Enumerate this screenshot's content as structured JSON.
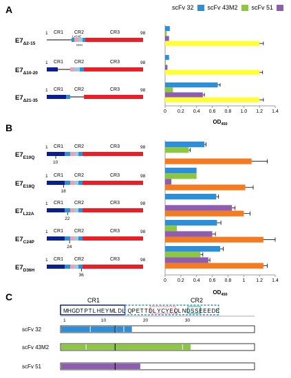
{
  "panels": {
    "a": "A",
    "b": "B",
    "c": "C"
  },
  "colors": {
    "scfv32": "#2e8fd8",
    "scfv43m2": "#8dc63f",
    "scfv51": "#8e5db0",
    "neg": "#ffff33",
    "pos": "#f47b20",
    "cr3": "#ee1c25",
    "cr1": "#0a1f8f",
    "cr2a": "#2e8fd8",
    "cr2b": "#e7a3b4",
    "cr2c": "#9ecae1"
  },
  "legend": [
    {
      "name": "scFv 32",
      "color": "#2e8fd8"
    },
    {
      "name": "scFv 43M2",
      "color": "#8dc63f"
    },
    {
      "name": "scFv 51",
      "color": "#8e5db0"
    }
  ],
  "constructs_a": [
    {
      "label_main": "E7",
      "label_sub": "Δ2-15",
      "cr1": "CR1",
      "cr2": "CR2",
      "cr3": "CR3",
      "start": "1",
      "end": "98",
      "extra1": "LxCxE",
      "extra2": "CKII"
    },
    {
      "label_main": "E7",
      "label_sub": "Δ10-20",
      "cr1": "CR1",
      "cr2": "CR2",
      "cr3": "CR3",
      "start": "1",
      "end": "98"
    },
    {
      "label_main": "E7",
      "label_sub": "Δ21-35",
      "cr1": "CR1",
      "cr2": "CR2",
      "cr3": "CR3",
      "start": "1",
      "end": "98"
    }
  ],
  "constructs_b": [
    {
      "label_main": "E7",
      "label_sub": "E10Q",
      "cr1": "CR1",
      "cr2": "CR2",
      "cr3": "CR3",
      "start": "1",
      "end": "98",
      "pos": "10"
    },
    {
      "label_main": "E7",
      "label_sub": "E18Q",
      "cr1": "CR1",
      "cr2": "CR2",
      "cr3": "CR3",
      "start": "1",
      "end": "98",
      "pos": "18"
    },
    {
      "label_main": "E7",
      "label_sub": "L22A",
      "cr1": "CR1",
      "cr2": "CR2",
      "cr3": "CR3",
      "start": "1",
      "end": "98",
      "pos": "22"
    },
    {
      "label_main": "E7",
      "label_sub": "C24P",
      "cr1": "CR1",
      "cr2": "CR2",
      "cr3": "CR3",
      "start": "1",
      "end": "98",
      "pos": "24"
    },
    {
      "label_main": "E7",
      "label_sub": "D36H",
      "cr1": "CR1",
      "cr2": "CR2",
      "cr3": "CR3",
      "start": "1",
      "end": "98",
      "pos": "36"
    }
  ],
  "chart_data": [
    {
      "type": "bar",
      "orientation": "horizontal",
      "xlabel": "OD450",
      "xlim": [
        0,
        1.4
      ],
      "ticks": [
        "0",
        "0.2",
        "0.4",
        "0.6",
        "0.8",
        "1.0",
        "1.2",
        "1.4"
      ],
      "groups": [
        {
          "name": "E7Δ2-15",
          "bars": [
            {
              "series": "scFv 32",
              "value": 0.06
            },
            {
              "series": "scFv 43M2",
              "value": 0.02
            },
            {
              "series": "scFv 51",
              "value": 0.05
            },
            {
              "series": "negative",
              "value": 1.2,
              "err": 0.05
            }
          ]
        },
        {
          "name": "E7Δ10-20",
          "bars": [
            {
              "series": "scFv 32",
              "value": 0.05
            },
            {
              "series": "scFv 43M2",
              "value": 0.01
            },
            {
              "series": "scFv 51",
              "value": 0.03
            },
            {
              "series": "negative",
              "value": 1.2,
              "err": 0.04
            }
          ]
        },
        {
          "name": "E7Δ21-35",
          "bars": [
            {
              "series": "scFv 32",
              "value": 0.67,
              "err": 0.03
            },
            {
              "series": "scFv 43M2",
              "value": 0.1
            },
            {
              "series": "scFv 51",
              "value": 0.48,
              "err": 0.02
            },
            {
              "series": "negative",
              "value": 1.2,
              "err": 0.05
            }
          ]
        }
      ]
    },
    {
      "type": "bar",
      "orientation": "horizontal",
      "xlabel": "OD450",
      "xlim": [
        0,
        1.4
      ],
      "ticks": [
        "0",
        "0.2",
        "0.4",
        "0.6",
        "0.8",
        "1",
        "1.2",
        "1.4"
      ],
      "groups": [
        {
          "name": "E7E10Q",
          "bars": [
            {
              "series": "scFv 32",
              "value": 0.5,
              "err": 0.02
            },
            {
              "series": "scFv 43M2",
              "value": 0.3,
              "err": 0.02
            },
            {
              "series": "scFv 51",
              "value": 0.0
            },
            {
              "series": "positive",
              "value": 1.1,
              "err": 0.2
            }
          ]
        },
        {
          "name": "E7E18Q",
          "bars": [
            {
              "series": "scFv 32",
              "value": 0.4
            },
            {
              "series": "scFv 43M2",
              "value": 0.4
            },
            {
              "series": "scFv 51",
              "value": 0.08
            },
            {
              "series": "positive",
              "value": 1.02,
              "err": 0.1
            }
          ]
        },
        {
          "name": "E7L22A",
          "bars": [
            {
              "series": "scFv 32",
              "value": 0.65,
              "err": 0.03
            },
            {
              "series": "scFv 43M2",
              "value": 0.0
            },
            {
              "series": "scFv 51",
              "value": 0.85,
              "err": 0.04
            },
            {
              "series": "positive",
              "value": 1.0,
              "err": 0.08
            }
          ]
        },
        {
          "name": "E7C24P",
          "bars": [
            {
              "series": "scFv 32",
              "value": 0.66,
              "err": 0.05
            },
            {
              "series": "scFv 43M2",
              "value": 0.15
            },
            {
              "series": "scFv 51",
              "value": 0.6,
              "err": 0.04
            },
            {
              "series": "positive",
              "value": 1.25,
              "err": 0.15
            }
          ]
        },
        {
          "name": "E7D36H",
          "bars": [
            {
              "series": "scFv 32",
              "value": 0.7,
              "err": 0.04
            },
            {
              "series": "scFv 43M2",
              "value": 0.45,
              "err": 0.03
            },
            {
              "series": "scFv 51",
              "value": 0.55,
              "err": 0.02
            },
            {
              "series": "positive",
              "value": 1.25,
              "err": 0.05
            }
          ]
        }
      ]
    }
  ],
  "sequence": {
    "cr1": "CR1",
    "cr2": "CR2",
    "cr1_seq": "MHGDTPTLHEYMLDL",
    "cr2_seq": "QPETTDLYCYEQLNDSSEEEDE",
    "ticks": [
      "1",
      "10",
      "20",
      "30"
    ]
  },
  "epitopes": [
    {
      "name": "scFv 32",
      "color": "#2e8fd8",
      "segments": [
        [
          0,
          6
        ],
        [
          7,
          12
        ],
        [
          13,
          14
        ],
        [
          15,
          16
        ]
      ],
      "mark": 12
    },
    {
      "name": "scFv 43M2",
      "color": "#8dc63f",
      "segments": [
        [
          0,
          5
        ],
        [
          6,
          28
        ],
        [
          29,
          30
        ]
      ],
      "mark": 12
    },
    {
      "name": "scFv 51",
      "color": "#8e5db0",
      "segments": [
        [
          0,
          18
        ]
      ],
      "mark": 12
    }
  ]
}
